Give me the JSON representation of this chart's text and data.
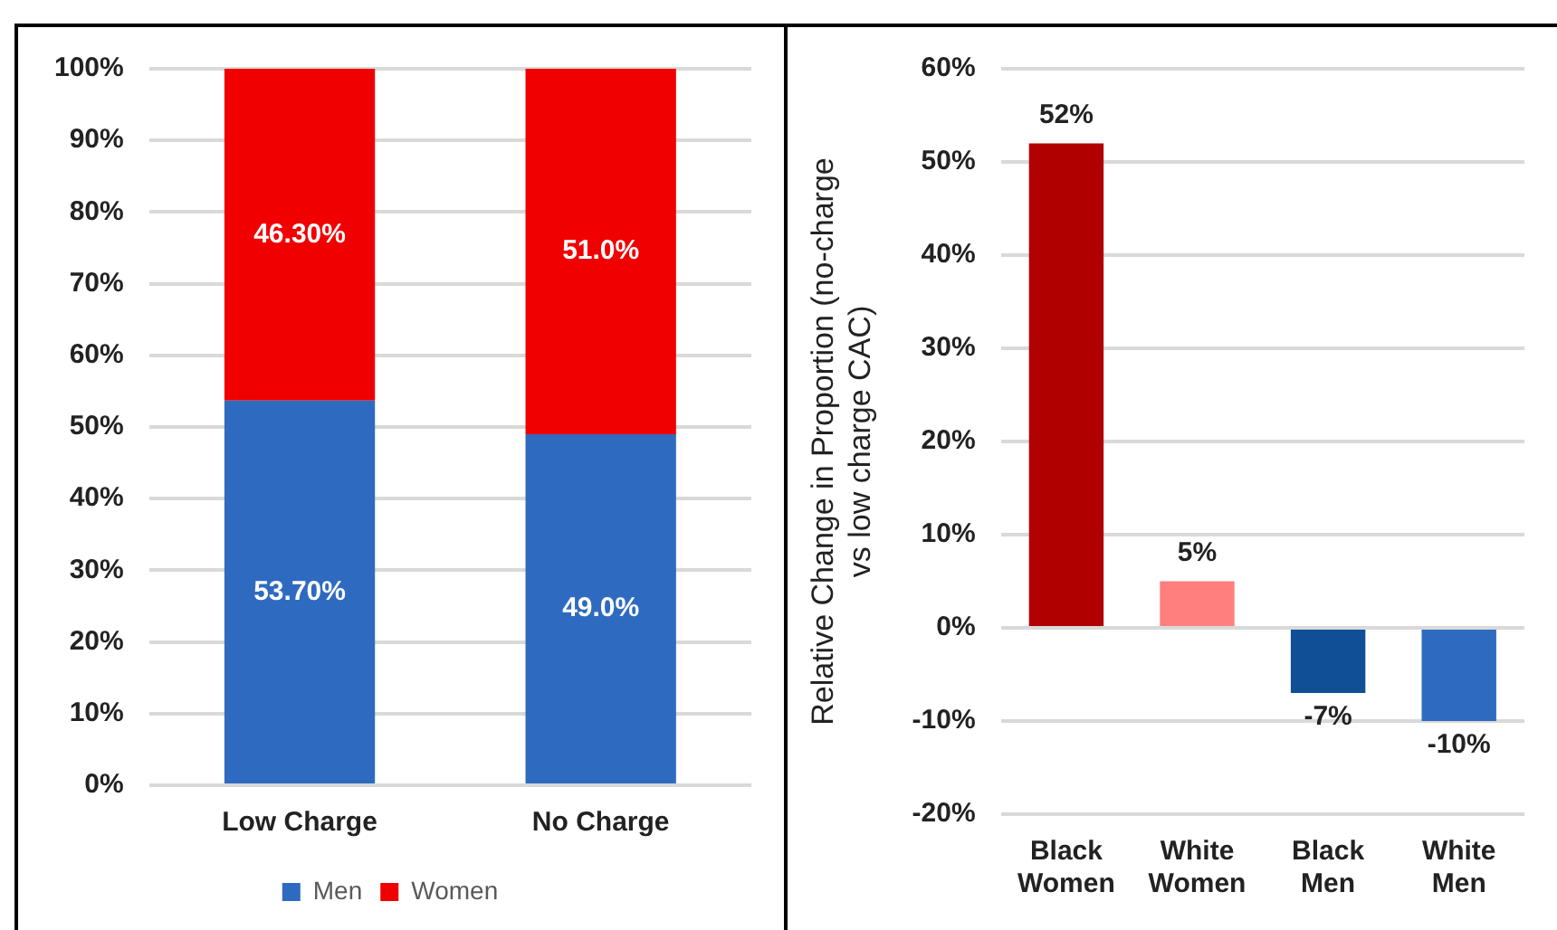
{
  "chart_data": [
    {
      "type": "bar",
      "stacked": true,
      "categories": [
        "Low Charge",
        "No Charge"
      ],
      "series": [
        {
          "name": "Men",
          "color": "#2e6bc0",
          "values": [
            53.7,
            49.0
          ],
          "value_labels": [
            "53.70%",
            "49.0%"
          ]
        },
        {
          "name": "Women",
          "color": "#f00000",
          "values": [
            46.3,
            51.0
          ],
          "value_labels": [
            "46.30%",
            "51.0%"
          ]
        }
      ],
      "ylim": [
        0,
        100
      ],
      "yticks": [
        {
          "value": 0,
          "label": "0%"
        },
        {
          "value": 10,
          "label": "10%"
        },
        {
          "value": 20,
          "label": "20%"
        },
        {
          "value": 30,
          "label": "30%"
        },
        {
          "value": 40,
          "label": "40%"
        },
        {
          "value": 50,
          "label": "50%"
        },
        {
          "value": 60,
          "label": "60%"
        },
        {
          "value": 70,
          "label": "70%"
        },
        {
          "value": 80,
          "label": "80%"
        },
        {
          "value": 90,
          "label": "90%"
        },
        {
          "value": 100,
          "label": "100%"
        }
      ],
      "grid": "y",
      "legend": "bottom"
    },
    {
      "type": "bar",
      "categories": [
        "Black Women",
        "White Women",
        "Black Men",
        "White Men"
      ],
      "values": [
        52,
        5,
        -7,
        -10
      ],
      "colors": [
        "#b00000",
        "#ff7f7f",
        "#104e95",
        "#2e6bc0"
      ],
      "value_labels": [
        "52%",
        "5%",
        "-7%",
        "-10%"
      ],
      "ylabel": "Relative Change in Proportion (no-charge vs low charge CAC)",
      "ylim": [
        -20,
        60
      ],
      "yticks": [
        {
          "value": -20,
          "label": "-20%"
        },
        {
          "value": -10,
          "label": "-10%"
        },
        {
          "value": 0,
          "label": "0%"
        },
        {
          "value": 10,
          "label": "10%"
        },
        {
          "value": 20,
          "label": "20%"
        },
        {
          "value": 30,
          "label": "30%"
        },
        {
          "value": 40,
          "label": "40%"
        },
        {
          "value": 50,
          "label": "50%"
        },
        {
          "value": 60,
          "label": "60%"
        }
      ],
      "grid": "y",
      "legend": false
    }
  ]
}
